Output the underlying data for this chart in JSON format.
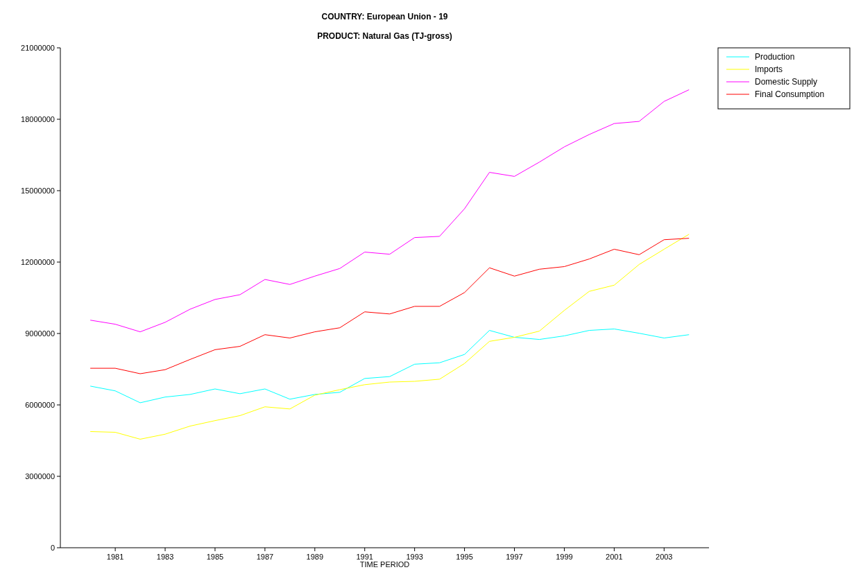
{
  "chart_data": {
    "type": "line",
    "title": "COUNTRY: European Union - 19",
    "subtitle": "PRODUCT: Natural Gas (TJ-gross)",
    "xlabel": "TIME PERIOD",
    "x": [
      1980,
      1981,
      1982,
      1983,
      1984,
      1985,
      1986,
      1987,
      1988,
      1989,
      1990,
      1991,
      1992,
      1993,
      1994,
      1995,
      1996,
      1997,
      1998,
      1999,
      2000,
      2001,
      2002,
      2003,
      2004
    ],
    "series": [
      {
        "name": "Production",
        "color": "#00ffff",
        "values": [
          6790000,
          6590000,
          6090000,
          6330000,
          6440000,
          6670000,
          6470000,
          6670000,
          6240000,
          6440000,
          6530000,
          7110000,
          7190000,
          7710000,
          7770000,
          8120000,
          9130000,
          8840000,
          8750000,
          8900000,
          9130000,
          9190000,
          9010000,
          8810000,
          8950000
        ]
      },
      {
        "name": "Imports",
        "color": "#ffff00",
        "values": [
          4880000,
          4850000,
          4560000,
          4770000,
          5110000,
          5340000,
          5550000,
          5920000,
          5830000,
          6410000,
          6640000,
          6850000,
          6960000,
          6990000,
          7080000,
          7740000,
          8670000,
          8840000,
          9100000,
          9970000,
          10770000,
          11030000,
          11900000,
          12540000,
          13170000
        ]
      },
      {
        "name": "Domestic Supply",
        "color": "#ff00ff",
        "values": [
          9560000,
          9390000,
          9070000,
          9470000,
          10020000,
          10430000,
          10630000,
          11270000,
          11060000,
          11410000,
          11730000,
          12420000,
          12330000,
          13030000,
          13080000,
          14240000,
          15770000,
          15600000,
          16200000,
          16840000,
          17360000,
          17820000,
          17910000,
          18750000,
          19240000
        ]
      },
      {
        "name": "Final Consumption",
        "color": "#ff0000",
        "values": [
          7540000,
          7540000,
          7310000,
          7480000,
          7910000,
          8320000,
          8460000,
          8950000,
          8810000,
          9070000,
          9240000,
          9910000,
          9820000,
          10140000,
          10140000,
          10720000,
          11760000,
          11410000,
          11700000,
          11810000,
          12130000,
          12540000,
          12310000,
          12940000,
          13000000
        ]
      }
    ],
    "xlim": [
      1978.8,
      2004.8
    ],
    "xticks": [
      1981,
      1983,
      1985,
      1987,
      1989,
      1991,
      1993,
      1995,
      1997,
      1999,
      2001,
      2003
    ],
    "ylim": [
      0,
      21000000
    ],
    "yticks": [
      0,
      3000000,
      6000000,
      9000000,
      12000000,
      15000000,
      18000000,
      21000000
    ],
    "grid": false,
    "legend": "top right"
  }
}
